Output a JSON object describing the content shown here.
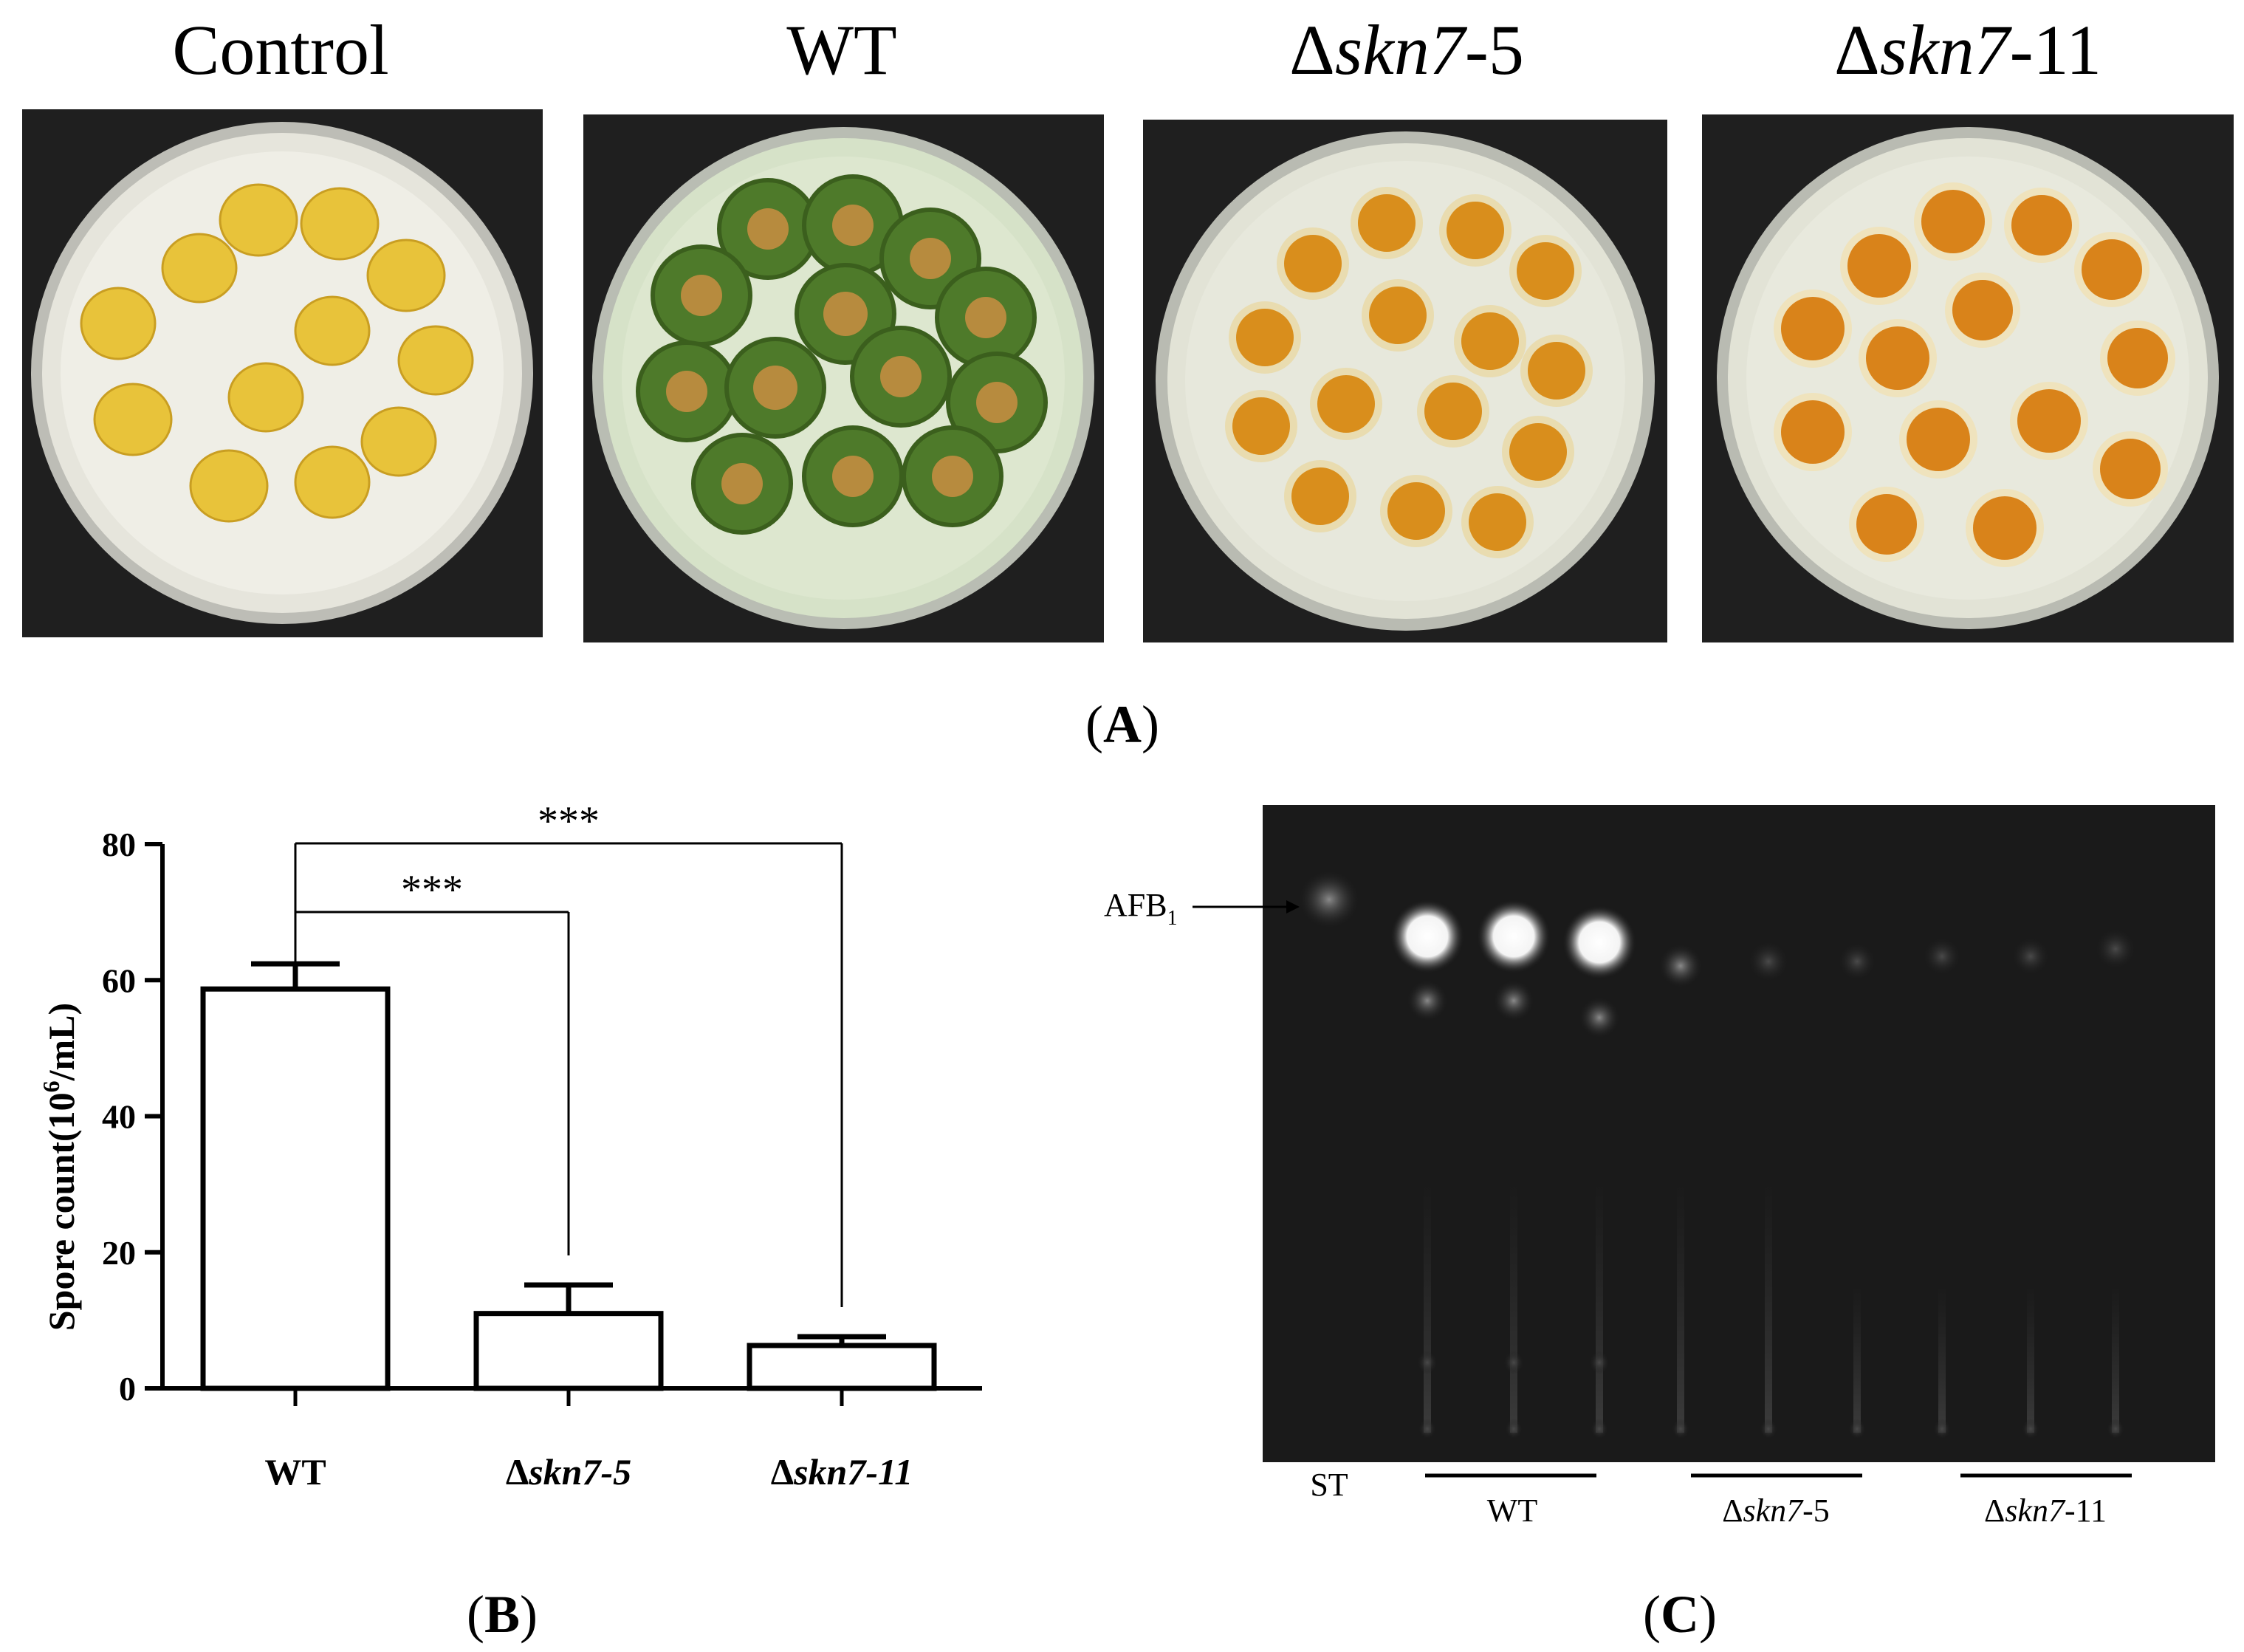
{
  "panelA": {
    "label": "A",
    "plates": [
      {
        "title": "Control",
        "italic": "",
        "suffix": "",
        "kernel_color": "#e8c33a",
        "mold": "none"
      },
      {
        "title": "",
        "italic": "",
        "suffix": "WT",
        "kernel_color": "#c98a2b",
        "mold": "green"
      },
      {
        "title": "Δ",
        "italic": "skn7",
        "suffix": "-5",
        "kernel_color": "#d98e1c",
        "mold": "white"
      },
      {
        "title": "Δ",
        "italic": "skn7",
        "suffix": "-11",
        "kernel_color": "#d9831a",
        "mold": "white"
      }
    ]
  },
  "panelB": {
    "label": "B",
    "chart_data": {
      "type": "bar",
      "categories": [
        "WT",
        "Δskn7-5",
        "Δskn7-11"
      ],
      "category_parts": [
        {
          "pre": "WT",
          "italic": ""
        },
        {
          "pre": "Δ",
          "italic": "skn7-5"
        },
        {
          "pre": "Δ",
          "italic": "skn7-11"
        }
      ],
      "values": [
        58.7,
        11.0,
        6.3
      ],
      "errors": [
        3.7,
        4.2,
        1.3
      ],
      "ylabel_main": "Spore count(10",
      "ylabel_sup": "6",
      "ylabel_end": "/mL)",
      "ylim": [
        0,
        80
      ],
      "yticks": [
        "0",
        "20",
        "40",
        "60",
        "80"
      ],
      "significance": [
        {
          "from": "WT",
          "to": "Δskn7-5",
          "label": "***"
        },
        {
          "from": "WT",
          "to": "Δskn7-11",
          "label": "***"
        }
      ]
    }
  },
  "panelC": {
    "label": "C",
    "afb_label": "AFB",
    "afb_sub": "1",
    "lane_labels": {
      "st": "ST",
      "wt": "WT",
      "skn5_pre": "Δ",
      "skn5_italic": "skn7",
      "skn5_suffix": "-5",
      "skn11_pre": "Δ",
      "skn11_italic": "skn7",
      "skn11_suffix": "-11"
    }
  }
}
